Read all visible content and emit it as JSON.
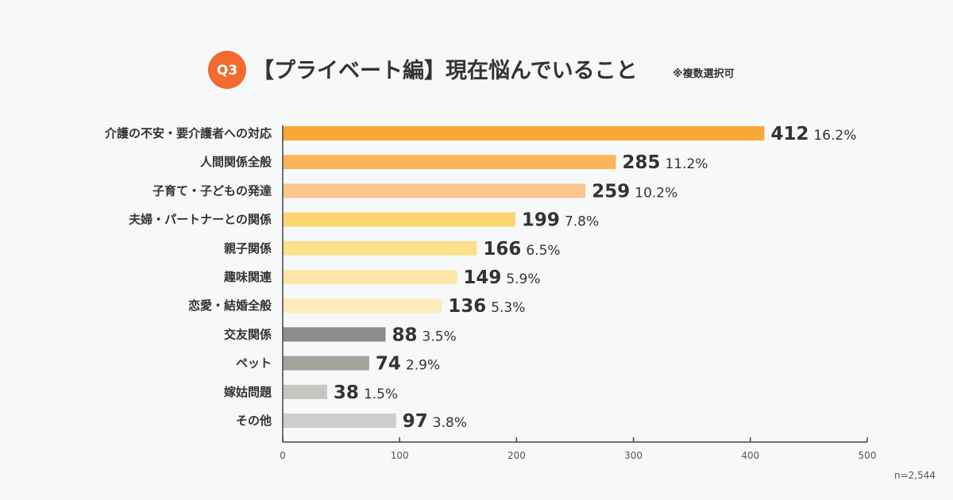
{
  "title": {
    "badge": "Q3",
    "text": "【プライベート編】現在悩んでいること",
    "note": "※複数選択可",
    "badge_color": "#f26a2e"
  },
  "sample_size": "n=2,544",
  "chart_data": {
    "type": "bar",
    "orientation": "horizontal",
    "title": "【プライベート編】現在悩んでいること",
    "xlabel": "",
    "ylabel": "",
    "xlim": [
      0,
      500
    ],
    "xticks": [
      0,
      100,
      200,
      300,
      400,
      500
    ],
    "grid": false,
    "categories": [
      "介護の不安・要介護者への対応",
      "人間関係全般",
      "子育て・子どもの発達",
      "夫婦・パートナーとの関係",
      "親子関係",
      "趣味関連",
      "恋愛・結婚全般",
      "交友関係",
      "ペット",
      "嫁姑問題",
      "その他"
    ],
    "values": [
      412,
      285,
      259,
      199,
      166,
      149,
      136,
      88,
      74,
      38,
      97
    ],
    "percent_labels": [
      "16.2%",
      "11.2%",
      "10.2%",
      "7.8%",
      "6.5%",
      "5.9%",
      "5.3%",
      "3.5%",
      "2.9%",
      "1.5%",
      "3.8%"
    ],
    "colors": [
      "#f9a836",
      "#fbb45a",
      "#fcc78e",
      "#fdd56f",
      "#fde08a",
      "#fde7a6",
      "#fdebba",
      "#8c8c8c",
      "#a3a39c",
      "#c6c6c2",
      "#cdcdca"
    ]
  }
}
